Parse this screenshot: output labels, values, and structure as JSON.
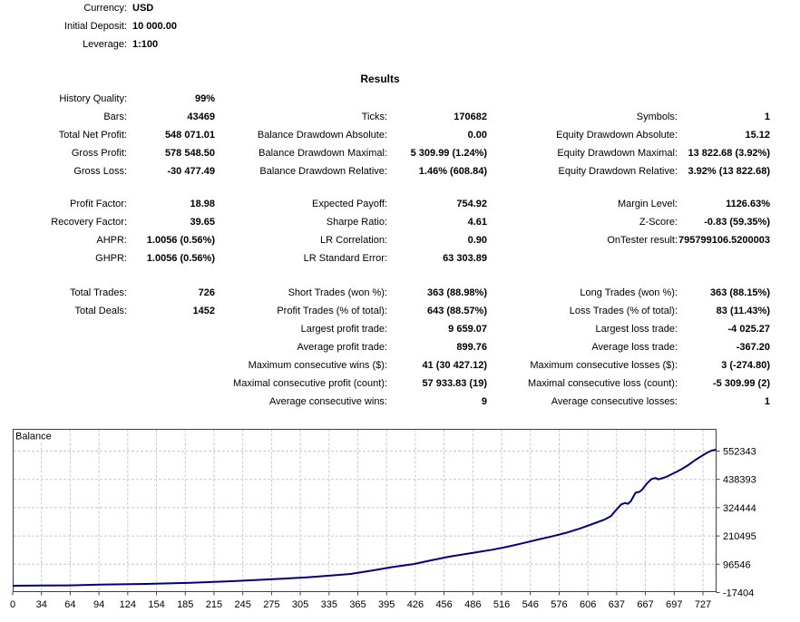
{
  "header": {
    "info": [
      {
        "label": "Currency:",
        "value": "USD"
      },
      {
        "label": "Initial Deposit:",
        "value": "10 000.00"
      },
      {
        "label": "Leverage:",
        "value": "1:100"
      }
    ],
    "title": "Results"
  },
  "results": {
    "sections": [
      [
        [
          "History Quality:",
          "99%",
          "",
          "",
          "",
          ""
        ],
        [
          "Bars:",
          "43469",
          "Ticks:",
          "170682",
          "Symbols:",
          "1"
        ],
        [
          "Total Net Profit:",
          "548 071.01",
          "Balance Drawdown Absolute:",
          "0.00",
          "Equity Drawdown Absolute:",
          "15.12"
        ],
        [
          "Gross Profit:",
          "578 548.50",
          "Balance Drawdown Maximal:",
          "5 309.99 (1.24%)",
          "Equity Drawdown Maximal:",
          "13 822.68 (3.92%)"
        ],
        [
          "Gross Loss:",
          "-30 477.49",
          "Balance Drawdown Relative:",
          "1.46% (608.84)",
          "Equity Drawdown Relative:",
          "3.92% (13 822.68)"
        ]
      ],
      [
        [
          "Profit Factor:",
          "18.98",
          "Expected Payoff:",
          "754.92",
          "Margin Level:",
          "1126.63%"
        ],
        [
          "Recovery Factor:",
          "39.65",
          "Sharpe Ratio:",
          "4.61",
          "Z-Score:",
          "-0.83 (59.35%)"
        ],
        [
          "AHPR:",
          "1.0056 (0.56%)",
          "LR Correlation:",
          "0.90",
          "OnTester result:",
          "795799106.5200003"
        ],
        [
          "GHPR:",
          "1.0056 (0.56%)",
          "LR Standard Error:",
          "63 303.89",
          "",
          ""
        ]
      ],
      [
        [
          "Total Trades:",
          "726",
          "Short Trades (won %):",
          "363 (88.98%)",
          "Long Trades (won %):",
          "363 (88.15%)"
        ],
        [
          "Total Deals:",
          "1452",
          "Profit Trades (% of total):",
          "643 (88.57%)",
          "Loss Trades (% of total):",
          "83 (11.43%)"
        ],
        [
          "",
          "",
          "Largest profit trade:",
          "9 659.07",
          "Largest loss trade:",
          "-4 025.27"
        ],
        [
          "",
          "",
          "Average profit trade:",
          "899.76",
          "Average loss trade:",
          "-367.20"
        ],
        [
          "",
          "",
          "Maximum consecutive wins ($):",
          "41 (30 427.12)",
          "Maximum consecutive losses ($):",
          "3 (-274.80)"
        ],
        [
          "",
          "",
          "Maximal consecutive profit (count):",
          "57 933.83 (19)",
          "Maximal consecutive loss (count):",
          "-5 309.99 (2)"
        ],
        [
          "",
          "",
          "Average consecutive wins:",
          "9",
          "Average consecutive losses:",
          "1"
        ]
      ]
    ]
  },
  "chart_data": {
    "type": "line",
    "title": "Balance",
    "xlabel": "",
    "ylabel": "",
    "x_tick_labels": [
      "0",
      "34",
      "64",
      "94",
      "124",
      "154",
      "185",
      "215",
      "245",
      "275",
      "305",
      "335",
      "365",
      "395",
      "426",
      "456",
      "486",
      "516",
      "546",
      "576",
      "606",
      "637",
      "667",
      "697",
      "727"
    ],
    "y_tick_labels": [
      "552343",
      "438393",
      "324444",
      "210495",
      "96546",
      "-17404"
    ],
    "y_tick_values": [
      552343,
      438393,
      324444,
      210495,
      96546,
      -17404
    ],
    "xlim": [
      0,
      741
    ],
    "ylim": [
      -12000,
      641800
    ],
    "grid": true,
    "legend": "none",
    "colors": {
      "line": "#000080",
      "grid": "#c8c8c8",
      "axis": "#404040",
      "text": "#000000"
    },
    "series": [
      {
        "name": "Balance",
        "points": [
          [
            0,
            10000
          ],
          [
            30,
            10500
          ],
          [
            60,
            11400
          ],
          [
            92,
            14700
          ],
          [
            140,
            17300
          ],
          [
            188,
            22000
          ],
          [
            236,
            29400
          ],
          [
            284,
            38100
          ],
          [
            310,
            44000
          ],
          [
            332,
            50200
          ],
          [
            356,
            57500
          ],
          [
            380,
            72000
          ],
          [
            400,
            85000
          ],
          [
            423,
            97600
          ],
          [
            440,
            112000
          ],
          [
            460,
            127000
          ],
          [
            489,
            145000
          ],
          [
            505,
            155000
          ],
          [
            521,
            167000
          ],
          [
            537,
            181000
          ],
          [
            553,
            196000
          ],
          [
            567,
            208000
          ],
          [
            582,
            222000
          ],
          [
            598,
            241000
          ],
          [
            613,
            262000
          ],
          [
            623,
            276000
          ],
          [
            630,
            290000
          ],
          [
            636,
            317000
          ],
          [
            641,
            338000
          ],
          [
            645,
            343000
          ],
          [
            648,
            340000
          ],
          [
            651,
            350000
          ],
          [
            654,
            371000
          ],
          [
            656,
            385000
          ],
          [
            660,
            388000
          ],
          [
            663,
            397000
          ],
          [
            668,
            422000
          ],
          [
            673,
            440000
          ],
          [
            677,
            444000
          ],
          [
            680,
            438500
          ],
          [
            684,
            443000
          ],
          [
            688,
            448000
          ],
          [
            694,
            459000
          ],
          [
            700,
            470000
          ],
          [
            706,
            483000
          ],
          [
            712,
            497000
          ],
          [
            718,
            514000
          ],
          [
            725,
            531000
          ],
          [
            731,
            545000
          ],
          [
            736,
            554000
          ],
          [
            741,
            558071
          ]
        ]
      }
    ]
  }
}
